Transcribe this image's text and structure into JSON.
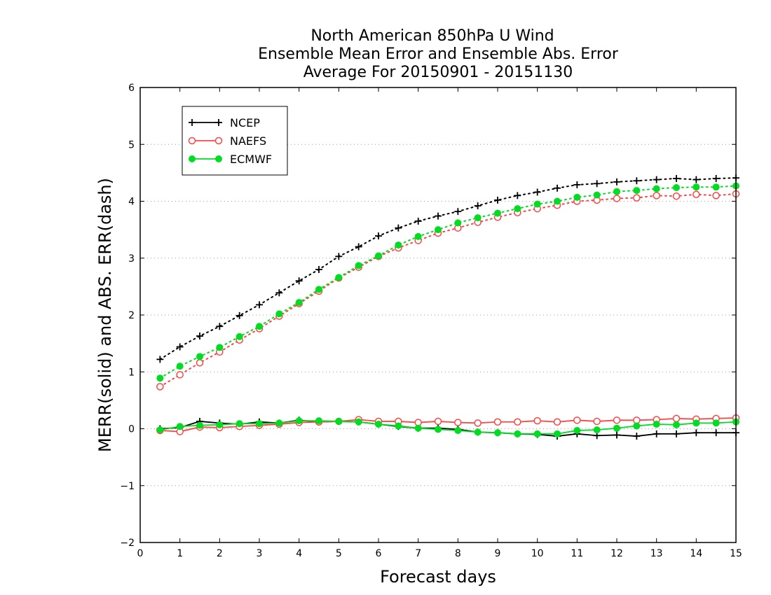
{
  "chart_data": {
    "type": "line",
    "title_lines": [
      "North American 850hPa U Wind",
      "Ensemble Mean Error and Ensemble Abs. Error",
      "Average For 20150901 - 20151130"
    ],
    "xlabel": "Forecast days",
    "ylabel": "MERR(solid) and ABS. ERR(dash)",
    "xlim": [
      0,
      15
    ],
    "ylim": [
      -2,
      6
    ],
    "x_ticks": [
      "0",
      "1",
      "2",
      "3",
      "4",
      "5",
      "6",
      "7",
      "8",
      "9",
      "10",
      "11",
      "12",
      "13",
      "14",
      "15"
    ],
    "y_ticks": [
      "−2",
      "−1",
      "0",
      "1",
      "2",
      "3",
      "4",
      "5",
      "6"
    ],
    "grid": "horizontal dotted",
    "legend_placement": "top-left",
    "x": [
      0.5,
      1,
      1.5,
      2,
      2.5,
      3,
      3.5,
      4,
      4.5,
      5,
      5.5,
      6,
      6.5,
      7,
      7.5,
      8,
      8.5,
      9,
      9.5,
      10,
      10.5,
      11,
      11.5,
      12,
      12.5,
      13,
      13.5,
      14,
      14.5,
      15
    ],
    "series": [
      {
        "name": "NCEP",
        "color": "#000000",
        "marker": "plus",
        "abs_error": [
          1.22,
          1.44,
          1.63,
          1.8,
          1.99,
          2.18,
          2.39,
          2.6,
          2.8,
          3.03,
          3.2,
          3.39,
          3.53,
          3.65,
          3.74,
          3.82,
          3.92,
          4.02,
          4.1,
          4.16,
          4.23,
          4.29,
          4.31,
          4.34,
          4.36,
          4.38,
          4.4,
          4.38,
          4.4,
          4.41
        ],
        "mean_error": [
          0.0,
          0.02,
          0.13,
          0.1,
          0.08,
          0.12,
          0.1,
          0.15,
          0.12,
          0.13,
          0.12,
          0.08,
          0.04,
          0.01,
          0.01,
          -0.01,
          -0.06,
          -0.07,
          -0.09,
          -0.1,
          -0.13,
          -0.09,
          -0.12,
          -0.11,
          -0.13,
          -0.09,
          -0.09,
          -0.07,
          -0.07,
          -0.07
        ]
      },
      {
        "name": "NAEFS",
        "color": "#ff4444",
        "marker": "open-circle",
        "abs_error": [
          0.74,
          0.95,
          1.16,
          1.35,
          1.56,
          1.76,
          1.98,
          2.2,
          2.42,
          2.65,
          2.84,
          3.03,
          3.18,
          3.31,
          3.44,
          3.53,
          3.63,
          3.72,
          3.8,
          3.87,
          3.93,
          4.0,
          4.02,
          4.05,
          4.06,
          4.1,
          4.09,
          4.12,
          4.1,
          4.13
        ],
        "mean_error": [
          -0.03,
          -0.05,
          0.03,
          0.02,
          0.04,
          0.06,
          0.08,
          0.11,
          0.12,
          0.13,
          0.16,
          0.13,
          0.13,
          0.11,
          0.13,
          0.11,
          0.1,
          0.12,
          0.12,
          0.14,
          0.12,
          0.15,
          0.13,
          0.15,
          0.15,
          0.16,
          0.18,
          0.17,
          0.18,
          0.19
        ]
      },
      {
        "name": "ECMWF",
        "color": "#00dd22",
        "marker": "filled-circle",
        "abs_error": [
          0.89,
          1.1,
          1.27,
          1.43,
          1.62,
          1.8,
          2.02,
          2.22,
          2.45,
          2.66,
          2.87,
          3.04,
          3.23,
          3.38,
          3.5,
          3.62,
          3.71,
          3.79,
          3.87,
          3.95,
          4.0,
          4.07,
          4.11,
          4.17,
          4.19,
          4.22,
          4.24,
          4.25,
          4.25,
          4.27
        ],
        "mean_error": [
          -0.02,
          0.04,
          0.06,
          0.07,
          0.09,
          0.09,
          0.1,
          0.14,
          0.14,
          0.13,
          0.12,
          0.08,
          0.05,
          0.01,
          -0.01,
          -0.03,
          -0.06,
          -0.07,
          -0.09,
          -0.09,
          -0.09,
          -0.03,
          -0.02,
          0.01,
          0.05,
          0.08,
          0.07,
          0.1,
          0.1,
          0.12
        ]
      }
    ]
  }
}
